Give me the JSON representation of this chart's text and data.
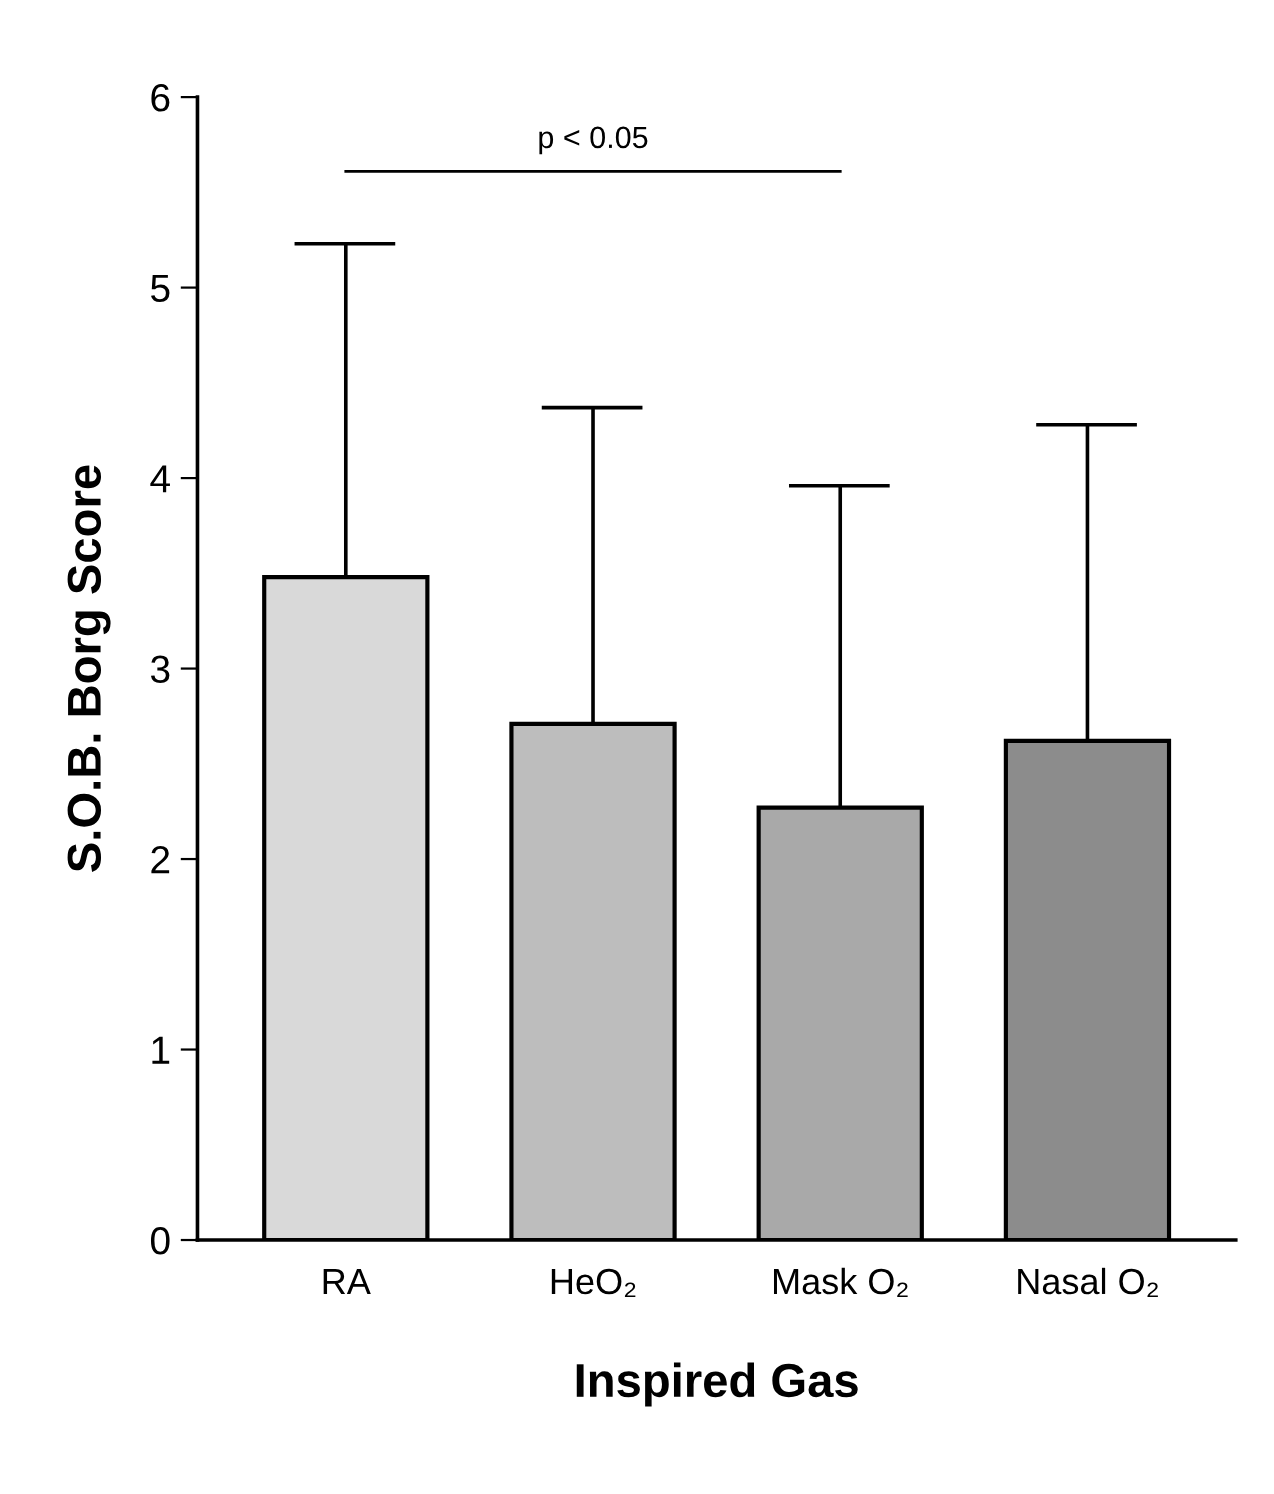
{
  "chart_data": {
    "type": "bar",
    "xlabel": "Inspired Gas",
    "ylabel": "S.O.B. Borg Score",
    "categories": [
      "RA",
      "HeO₂",
      "Mask O₂",
      "Nasal O₂"
    ],
    "values": [
      3.48,
      2.71,
      2.27,
      2.62
    ],
    "colors": [
      "#d9d9d9",
      "#bdbdbd",
      "#a9a9a9",
      "#8c8c8c"
    ],
    "errors": [
      [
        3.48,
        5.23
      ],
      [
        2.71,
        4.37
      ],
      [
        2.27,
        3.96
      ],
      [
        2.62,
        4.28
      ]
    ],
    "ylim": [
      0,
      6
    ],
    "yticks": [
      0,
      1,
      2,
      3,
      4,
      5,
      6
    ],
    "grid": false,
    "legend": false,
    "annotations": [
      "p < 0.05"
    ]
  }
}
